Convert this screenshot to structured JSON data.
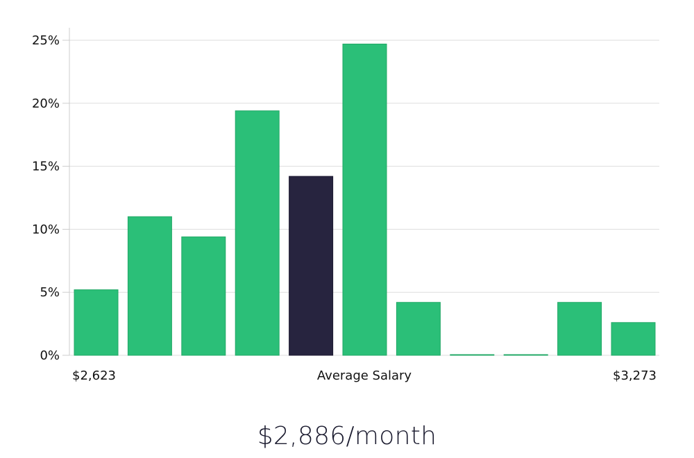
{
  "chart_data": {
    "type": "bar",
    "categories": [
      "1",
      "2",
      "3",
      "4",
      "5",
      "6",
      "7",
      "8",
      "9",
      "10",
      "11"
    ],
    "values": [
      5.2,
      11.0,
      9.4,
      19.4,
      14.2,
      24.7,
      4.2,
      0.05,
      0.05,
      4.2,
      2.6
    ],
    "highlight_index": 4,
    "y_ticks": [
      "0%",
      "5%",
      "10%",
      "15%",
      "20%",
      "25%"
    ],
    "ylim": [
      0,
      26
    ],
    "y_tick_values": [
      0,
      5,
      10,
      15,
      20,
      25
    ],
    "x_labels": {
      "left": "$2,623",
      "center": "Average Salary",
      "right": "$3,273"
    },
    "grid": true,
    "colors": {
      "bar": "#2bbf78",
      "bar_edge": "#22a866",
      "highlight": "#27243f",
      "grid": "#dddddd",
      "axis": "#cccccc"
    }
  },
  "headline": "$2,886/month"
}
